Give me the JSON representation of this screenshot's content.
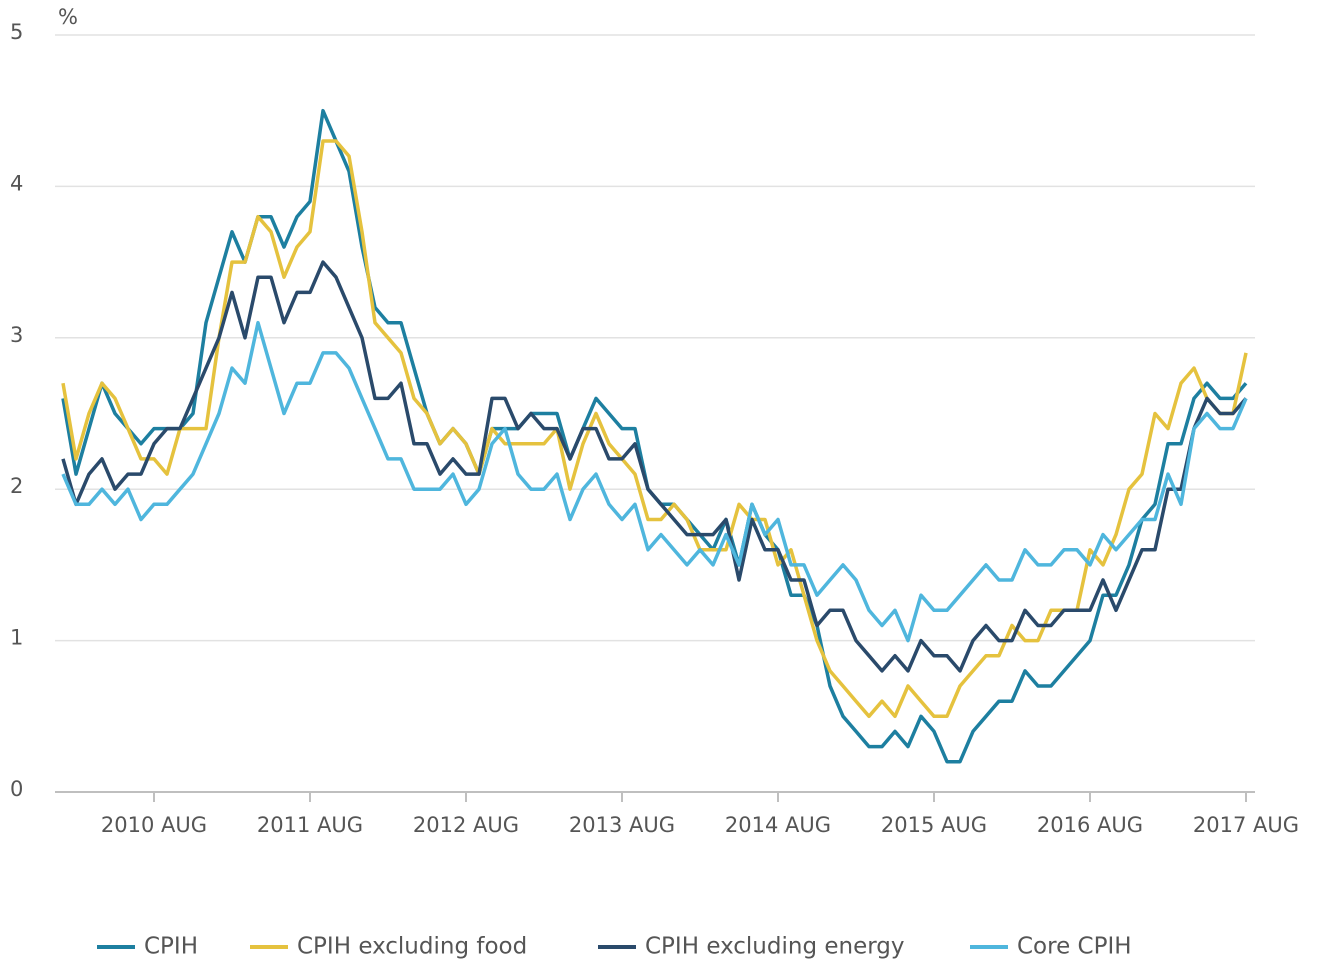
{
  "chart_data": {
    "type": "line",
    "y_label": "%",
    "categories": [
      null,
      null,
      null,
      null,
      null,
      null,
      null,
      "2010 AUG",
      null,
      null,
      null,
      null,
      null,
      null,
      null,
      null,
      null,
      null,
      null,
      "2011 AUG",
      null,
      null,
      null,
      null,
      null,
      null,
      null,
      null,
      null,
      null,
      null,
      "2012 AUG",
      null,
      null,
      null,
      null,
      null,
      null,
      null,
      null,
      null,
      null,
      null,
      "2013 AUG",
      null,
      null,
      null,
      null,
      null,
      null,
      null,
      null,
      null,
      null,
      null,
      "2014 AUG",
      null,
      null,
      null,
      null,
      null,
      null,
      null,
      null,
      null,
      null,
      null,
      "2015 AUG",
      null,
      null,
      null,
      null,
      null,
      null,
      null,
      null,
      null,
      null,
      null,
      "2016 AUG",
      null,
      null,
      null,
      null,
      null,
      null,
      null,
      null,
      null,
      null,
      null,
      "2017 AUG"
    ],
    "series": [
      {
        "name": "CPIH",
        "color": "#1d7fa0",
        "values": [
          2.6,
          2.1,
          2.4,
          2.7,
          2.5,
          2.4,
          2.3,
          2.4,
          2.4,
          2.4,
          2.5,
          3.1,
          3.4,
          3.7,
          3.5,
          3.8,
          3.8,
          3.6,
          3.8,
          3.9,
          4.5,
          4.3,
          4.1,
          3.6,
          3.2,
          3.1,
          3.1,
          2.8,
          2.5,
          2.3,
          2.4,
          2.3,
          2.1,
          2.4,
          2.4,
          2.4,
          2.5,
          2.5,
          2.5,
          2.2,
          2.4,
          2.6,
          2.5,
          2.4,
          2.4,
          2.0,
          1.9,
          1.9,
          1.8,
          1.7,
          1.6,
          1.8,
          1.5,
          1.9,
          1.7,
          1.6,
          1.3,
          1.3,
          1.1,
          0.7,
          0.5,
          0.4,
          0.3,
          0.3,
          0.4,
          0.3,
          0.5,
          0.4,
          0.2,
          0.2,
          0.4,
          0.5,
          0.6,
          0.6,
          0.8,
          0.7,
          0.7,
          0.8,
          0.9,
          1.0,
          1.3,
          1.3,
          1.5,
          1.8,
          1.9,
          2.3,
          2.3,
          2.6,
          2.7,
          2.6,
          2.6,
          2.7
        ]
      },
      {
        "name": "CPIH excluding food",
        "color": "#e5c23e",
        "values": [
          2.7,
          2.2,
          2.5,
          2.7,
          2.6,
          2.4,
          2.2,
          2.2,
          2.1,
          2.4,
          2.4,
          2.4,
          3.0,
          3.5,
          3.5,
          3.8,
          3.7,
          3.4,
          3.6,
          3.7,
          4.3,
          4.3,
          4.2,
          3.7,
          3.1,
          3.0,
          2.9,
          2.6,
          2.5,
          2.3,
          2.4,
          2.3,
          2.1,
          2.4,
          2.3,
          2.3,
          2.3,
          2.3,
          2.4,
          2.0,
          2.3,
          2.5,
          2.3,
          2.2,
          2.1,
          1.8,
          1.8,
          1.9,
          1.8,
          1.6,
          1.6,
          1.6,
          1.9,
          1.8,
          1.8,
          1.5,
          1.6,
          1.3,
          1.0,
          0.8,
          0.7,
          0.6,
          0.5,
          0.6,
          0.5,
          0.7,
          0.6,
          0.5,
          0.5,
          0.7,
          0.8,
          0.9,
          0.9,
          1.1,
          1.0,
          1.0,
          1.2,
          1.2,
          1.2,
          1.6,
          1.5,
          1.7,
          2.0,
          2.1,
          2.5,
          2.4,
          2.7,
          2.8,
          2.6,
          2.5,
          2.5,
          2.9
        ]
      },
      {
        "name": "CPIH excluding energy",
        "color": "#2a4a6b",
        "values": [
          2.2,
          1.9,
          2.1,
          2.2,
          2.0,
          2.1,
          2.1,
          2.3,
          2.4,
          2.4,
          2.6,
          2.8,
          3.0,
          3.3,
          3.0,
          3.4,
          3.4,
          3.1,
          3.3,
          3.3,
          3.5,
          3.4,
          3.2,
          3.0,
          2.6,
          2.6,
          2.7,
          2.3,
          2.3,
          2.1,
          2.2,
          2.1,
          2.1,
          2.6,
          2.6,
          2.4,
          2.5,
          2.4,
          2.4,
          2.2,
          2.4,
          2.4,
          2.2,
          2.2,
          2.3,
          2.0,
          1.9,
          1.8,
          1.7,
          1.7,
          1.7,
          1.8,
          1.4,
          1.8,
          1.6,
          1.6,
          1.4,
          1.4,
          1.1,
          1.2,
          1.2,
          1.0,
          0.9,
          0.8,
          0.9,
          0.8,
          1.0,
          0.9,
          0.9,
          0.8,
          1.0,
          1.1,
          1.0,
          1.0,
          1.2,
          1.1,
          1.1,
          1.2,
          1.2,
          1.2,
          1.4,
          1.2,
          1.4,
          1.6,
          1.6,
          2.0,
          2.0,
          2.4,
          2.6,
          2.5,
          2.5,
          2.6
        ]
      },
      {
        "name": "Core CPIH",
        "color": "#4fb6dd",
        "values": [
          2.1,
          1.9,
          1.9,
          2.0,
          1.9,
          2.0,
          1.8,
          1.9,
          1.9,
          2.0,
          2.1,
          2.3,
          2.5,
          2.8,
          2.7,
          3.1,
          2.8,
          2.5,
          2.7,
          2.7,
          2.9,
          2.9,
          2.8,
          2.6,
          2.4,
          2.2,
          2.2,
          2.0,
          2.0,
          2.0,
          2.1,
          1.9,
          2.0,
          2.3,
          2.4,
          2.1,
          2.0,
          2.0,
          2.1,
          1.8,
          2.0,
          2.1,
          1.9,
          1.8,
          1.9,
          1.6,
          1.7,
          1.6,
          1.5,
          1.6,
          1.5,
          1.7,
          1.5,
          1.9,
          1.7,
          1.8,
          1.5,
          1.5,
          1.3,
          1.4,
          1.5,
          1.4,
          1.2,
          1.1,
          1.2,
          1.0,
          1.3,
          1.2,
          1.2,
          1.3,
          1.4,
          1.5,
          1.4,
          1.4,
          1.6,
          1.5,
          1.5,
          1.6,
          1.6,
          1.5,
          1.7,
          1.6,
          1.7,
          1.8,
          1.8,
          2.1,
          1.9,
          2.4,
          2.5,
          2.4,
          2.4,
          2.6
        ]
      }
    ],
    "ylim": [
      0,
      5
    ],
    "yticks": [
      0,
      1,
      2,
      3,
      4,
      5
    ],
    "grid": true,
    "legend": "bottom"
  }
}
